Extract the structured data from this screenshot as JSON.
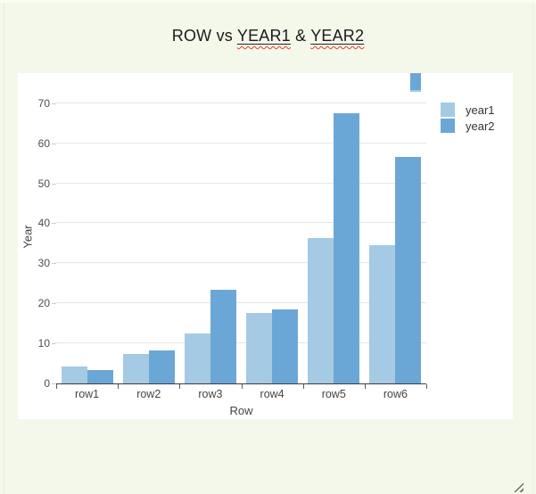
{
  "window": {
    "background_color": "#f4f8eb",
    "panel_color": "#ffffff"
  },
  "title": {
    "prefix": "ROW vs ",
    "year1": "YEAR1",
    "separator": " & ",
    "year2": "YEAR2",
    "text_color": "#1a1a1a",
    "spellcheck_underline_color": "#e13b2a"
  },
  "chart_data": {
    "type": "bar",
    "title": "ROW vs YEAR1 & YEAR2",
    "categories": [
      "row1",
      "row2",
      "row3",
      "row4",
      "row5",
      "row6"
    ],
    "series": [
      {
        "name": "year1",
        "color": "#a5cae3",
        "values": [
          4.2,
          7.3,
          12.4,
          17.5,
          36.4,
          34.5
        ]
      },
      {
        "name": "year2",
        "color": "#6ba7d6",
        "values": [
          3.3,
          8.3,
          23.4,
          18.5,
          67.5,
          56.5
        ]
      }
    ],
    "xlabel": "Row",
    "ylabel": "Year",
    "ylim": [
      0,
      70
    ],
    "yticks": [
      0,
      10,
      20,
      30,
      40,
      50,
      60,
      70
    ],
    "grid": true,
    "gridline_color": "#e6e6e6",
    "axis_line_color": "#3d3d3d",
    "tick_label_color": "#4d4d4d",
    "legend_position": "top-right-outside-plot"
  },
  "icons": {
    "resize_grip": "diagonal-resize-grip"
  }
}
